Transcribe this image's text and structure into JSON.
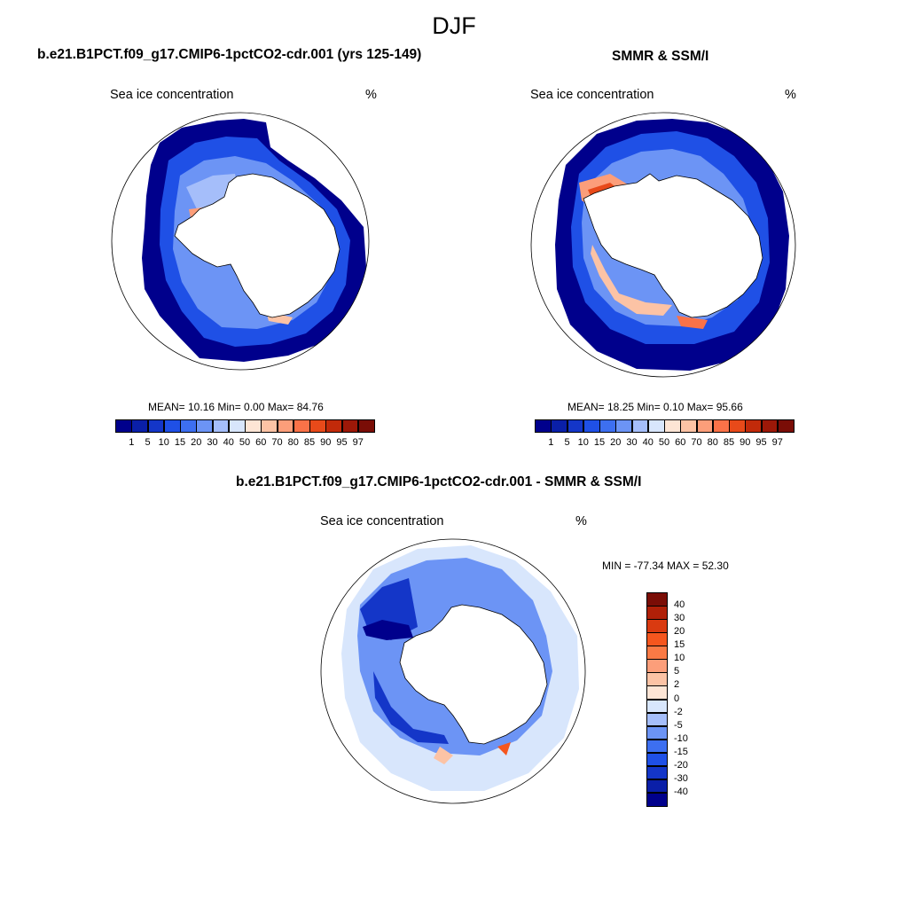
{
  "figure": {
    "title": "DJF"
  },
  "panels": [
    {
      "id": "model",
      "title": "b.e21.B1PCT.f09_g17.CMIP6-1pctCO2-cdr.001 (yrs 125-149)",
      "subtitle": "Sea ice concentration",
      "units": "%",
      "stats": "MEAN=  10.16  Min=   0.00  Max=  84.76"
    },
    {
      "id": "obs",
      "title": "SMMR & SSM/I",
      "subtitle": "Sea ice concentration",
      "units": "%",
      "stats": "MEAN=  18.25  Min=   0.10  Max=  95.66"
    },
    {
      "id": "diff",
      "title": "b.e21.B1PCT.f09_g17.CMIP6-1pctCO2-cdr.001 - SMMR & SSM/I",
      "subtitle": "Sea ice concentration",
      "units": "%",
      "stats": "MIN = -77.34 MAX =  52.30"
    }
  ],
  "colorbar_concentration": {
    "labels": [
      "1",
      "5",
      "10",
      "15",
      "20",
      "30",
      "40",
      "50",
      "60",
      "70",
      "80",
      "85",
      "90",
      "95",
      "97"
    ],
    "colors": [
      "#00008c",
      "#0a1fa8",
      "#1436c8",
      "#1f50e6",
      "#3d6ff0",
      "#6c94f5",
      "#a5befa",
      "#d8e6fc",
      "#fde5d5",
      "#fcc3a5",
      "#fc9e7a",
      "#fa7248",
      "#e84a1a",
      "#c22a0a",
      "#9c1808",
      "#7a0d06"
    ]
  },
  "colorbar_difference": {
    "labels": [
      "40",
      "30",
      "20",
      "15",
      "10",
      "5",
      "2",
      "0",
      "-2",
      "-5",
      "-10",
      "-15",
      "-20",
      "-30",
      "-40"
    ],
    "colors": [
      "#7a0d06",
      "#b02008",
      "#d93a10",
      "#f5561e",
      "#fa7a45",
      "#fc9e7a",
      "#fcc3a5",
      "#fde5d5",
      "#d8e6fc",
      "#a5befa",
      "#6c94f5",
      "#3d6ff0",
      "#1f50e6",
      "#1436c8",
      "#0a1fa8",
      "#00008c"
    ]
  }
}
